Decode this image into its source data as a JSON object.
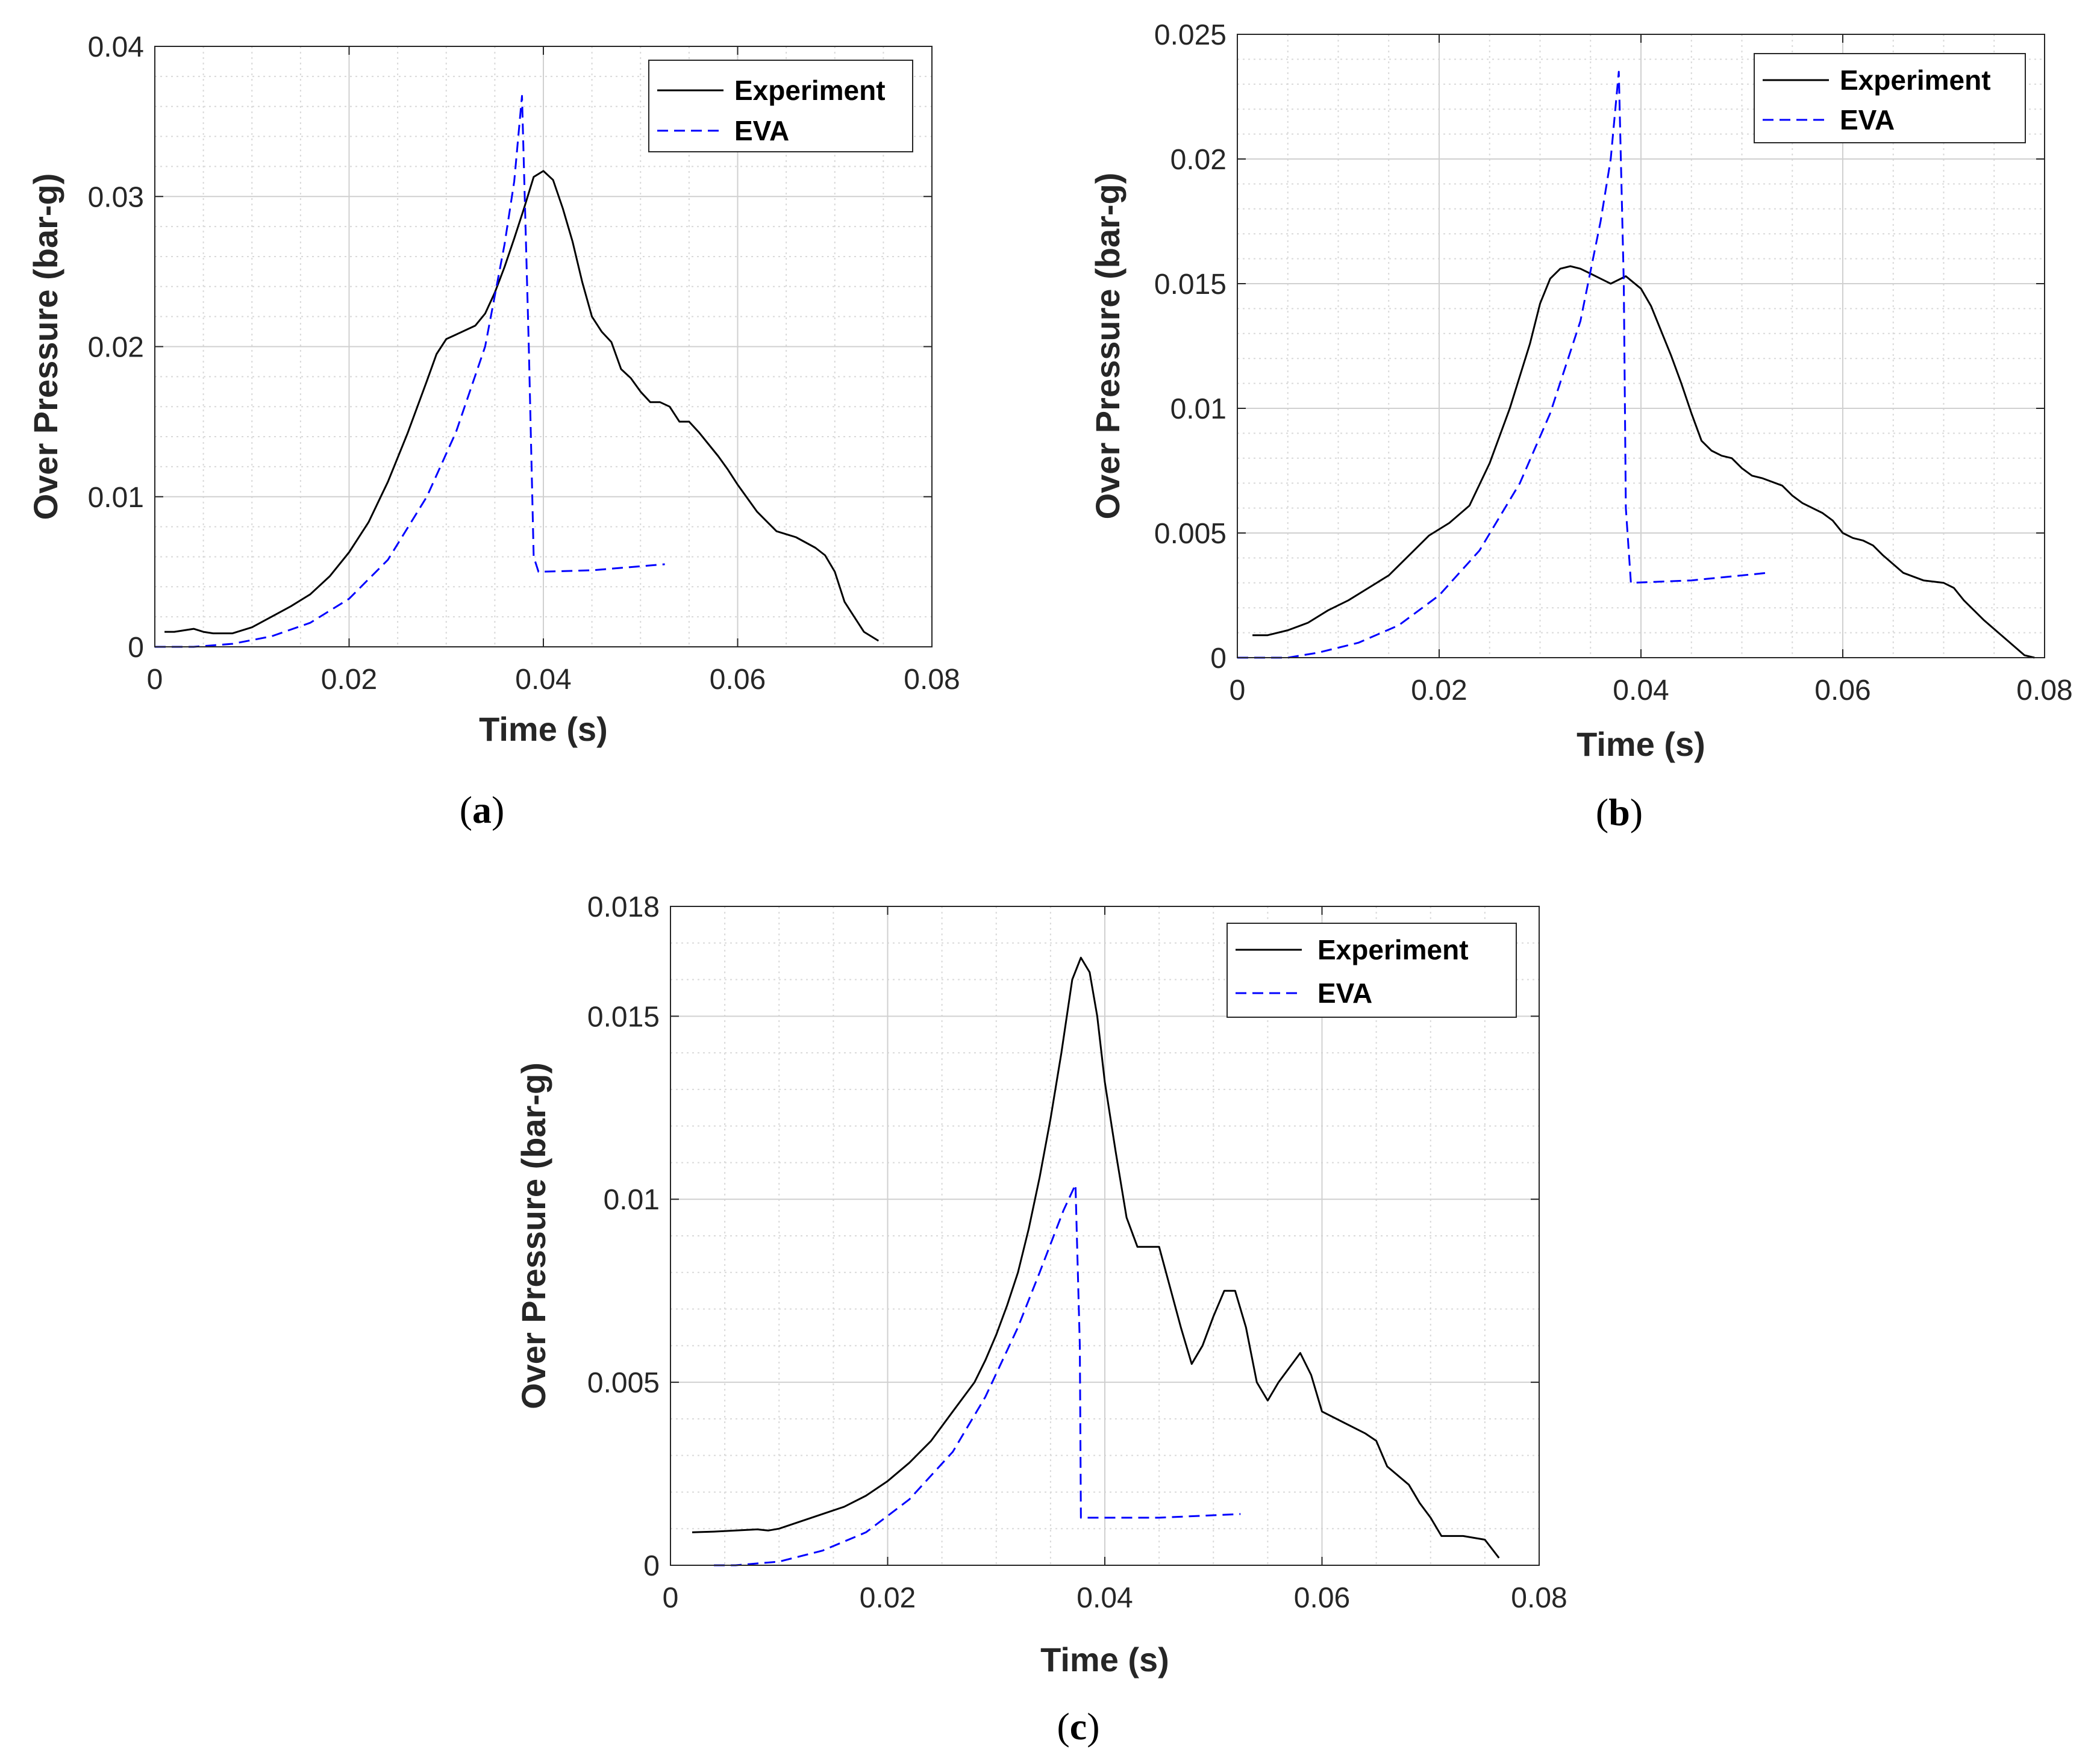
{
  "chart_data": [
    {
      "panel": "a",
      "panel_label": "(a)",
      "panel_letter": "a",
      "type": "line",
      "xlabel": "Time (s)",
      "ylabel": "Over Pressure (bar-g)",
      "xlim": [
        0,
        0.08
      ],
      "ylim": [
        0,
        0.04
      ],
      "xticks": [
        0,
        0.02,
        0.04,
        0.06,
        0.08
      ],
      "xtick_labels": [
        "0",
        "0.02",
        "0.04",
        "0.06",
        "0.08"
      ],
      "yticks": [
        0,
        0.01,
        0.02,
        0.03,
        0.04
      ],
      "ytick_labels": [
        "0",
        "0.01",
        "0.02",
        "0.03",
        "0.04"
      ],
      "grid": true,
      "minor_grid": true,
      "legend_position": "top-right",
      "series": [
        {
          "name": "Experiment",
          "color": "#000000",
          "style": "solid",
          "points": [
            [
              0.001,
              0.001
            ],
            [
              0.002,
              0.001
            ],
            [
              0.004,
              0.0012
            ],
            [
              0.005,
              0.001
            ],
            [
              0.006,
              0.0009
            ],
            [
              0.008,
              0.0009
            ],
            [
              0.01,
              0.0013
            ],
            [
              0.012,
              0.002
            ],
            [
              0.014,
              0.0027
            ],
            [
              0.016,
              0.0035
            ],
            [
              0.018,
              0.0047
            ],
            [
              0.02,
              0.0063
            ],
            [
              0.022,
              0.0083
            ],
            [
              0.024,
              0.011
            ],
            [
              0.026,
              0.0142
            ],
            [
              0.028,
              0.0177
            ],
            [
              0.029,
              0.0195
            ],
            [
              0.03,
              0.0205
            ],
            [
              0.031,
              0.0208
            ],
            [
              0.032,
              0.0211
            ],
            [
              0.033,
              0.0214
            ],
            [
              0.034,
              0.0222
            ],
            [
              0.035,
              0.0236
            ],
            [
              0.036,
              0.0253
            ],
            [
              0.037,
              0.0272
            ],
            [
              0.038,
              0.0292
            ],
            [
              0.039,
              0.0313
            ],
            [
              0.04,
              0.0317
            ],
            [
              0.041,
              0.0311
            ],
            [
              0.042,
              0.0292
            ],
            [
              0.043,
              0.027
            ],
            [
              0.044,
              0.0243
            ],
            [
              0.045,
              0.022
            ],
            [
              0.046,
              0.021
            ],
            [
              0.047,
              0.0203
            ],
            [
              0.048,
              0.0185
            ],
            [
              0.049,
              0.0179
            ],
            [
              0.05,
              0.017
            ],
            [
              0.051,
              0.0163
            ],
            [
              0.052,
              0.0163
            ],
            [
              0.053,
              0.016
            ],
            [
              0.054,
              0.015
            ],
            [
              0.055,
              0.015
            ],
            [
              0.056,
              0.0143
            ],
            [
              0.057,
              0.0135
            ],
            [
              0.058,
              0.0127
            ],
            [
              0.059,
              0.0118
            ],
            [
              0.06,
              0.0108
            ],
            [
              0.062,
              0.009
            ],
            [
              0.064,
              0.0077
            ],
            [
              0.066,
              0.0073
            ],
            [
              0.068,
              0.0066
            ],
            [
              0.069,
              0.0061
            ],
            [
              0.07,
              0.005
            ],
            [
              0.071,
              0.003
            ],
            [
              0.072,
              0.002
            ],
            [
              0.073,
              0.001
            ],
            [
              0.0745,
              0.0004
            ]
          ]
        },
        {
          "name": "EVA",
          "color": "#0000ff",
          "style": "dashed",
          "points": [
            [
              0.0,
              0.0
            ],
            [
              0.004,
              0.0
            ],
            [
              0.008,
              0.0002
            ],
            [
              0.012,
              0.0007
            ],
            [
              0.016,
              0.0016
            ],
            [
              0.02,
              0.0032
            ],
            [
              0.024,
              0.0058
            ],
            [
              0.028,
              0.01
            ],
            [
              0.031,
              0.0143
            ],
            [
              0.034,
              0.02
            ],
            [
              0.036,
              0.0268
            ],
            [
              0.037,
              0.031
            ],
            [
              0.0378,
              0.0367
            ],
            [
              0.0385,
              0.02
            ],
            [
              0.039,
              0.006
            ],
            [
              0.0395,
              0.005
            ],
            [
              0.045,
              0.0051
            ],
            [
              0.0525,
              0.0055
            ]
          ]
        }
      ]
    },
    {
      "panel": "b",
      "panel_label": "(b)",
      "panel_letter": "b",
      "type": "line",
      "xlabel": "Time (s)",
      "ylabel": "Over Pressure (bar-g)",
      "xlim": [
        0,
        0.08
      ],
      "ylim": [
        0,
        0.025
      ],
      "xticks": [
        0,
        0.02,
        0.04,
        0.06,
        0.08
      ],
      "xtick_labels": [
        "0",
        "0.02",
        "0.04",
        "0.06",
        "0.08"
      ],
      "yticks": [
        0,
        0.005,
        0.01,
        0.015,
        0.02,
        0.025
      ],
      "ytick_labels": [
        "0",
        "0.005",
        "0.01",
        "0.015",
        "0.02",
        "0.025"
      ],
      "grid": true,
      "minor_grid": true,
      "legend_position": "top-right",
      "series": [
        {
          "name": "Experiment",
          "color": "#000000",
          "style": "solid",
          "points": [
            [
              0.0015,
              0.0009
            ],
            [
              0.003,
              0.0009
            ],
            [
              0.005,
              0.0011
            ],
            [
              0.007,
              0.0014
            ],
            [
              0.009,
              0.0019
            ],
            [
              0.011,
              0.0023
            ],
            [
              0.013,
              0.0028
            ],
            [
              0.015,
              0.0033
            ],
            [
              0.017,
              0.0041
            ],
            [
              0.019,
              0.0049
            ],
            [
              0.021,
              0.0054
            ],
            [
              0.023,
              0.0061
            ],
            [
              0.025,
              0.0078
            ],
            [
              0.027,
              0.01
            ],
            [
              0.029,
              0.0126
            ],
            [
              0.03,
              0.0142
            ],
            [
              0.031,
              0.0152
            ],
            [
              0.032,
              0.0156
            ],
            [
              0.033,
              0.0157
            ],
            [
              0.034,
              0.0156
            ],
            [
              0.035,
              0.0154
            ],
            [
              0.036,
              0.0152
            ],
            [
              0.037,
              0.015
            ],
            [
              0.0385,
              0.0153
            ],
            [
              0.04,
              0.0148
            ],
            [
              0.041,
              0.0141
            ],
            [
              0.043,
              0.0121
            ],
            [
              0.044,
              0.011
            ],
            [
              0.045,
              0.0098
            ],
            [
              0.046,
              0.0087
            ],
            [
              0.047,
              0.0083
            ],
            [
              0.048,
              0.0081
            ],
            [
              0.049,
              0.008
            ],
            [
              0.05,
              0.0076
            ],
            [
              0.051,
              0.0073
            ],
            [
              0.052,
              0.0072
            ],
            [
              0.054,
              0.0069
            ],
            [
              0.055,
              0.0065
            ],
            [
              0.056,
              0.0062
            ],
            [
              0.058,
              0.0058
            ],
            [
              0.059,
              0.0055
            ],
            [
              0.06,
              0.005
            ],
            [
              0.061,
              0.0048
            ],
            [
              0.062,
              0.0047
            ],
            [
              0.063,
              0.0045
            ],
            [
              0.064,
              0.0041
            ],
            [
              0.066,
              0.0034
            ],
            [
              0.068,
              0.0031
            ],
            [
              0.07,
              0.003
            ],
            [
              0.071,
              0.0028
            ],
            [
              0.072,
              0.0023
            ],
            [
              0.074,
              0.0015
            ],
            [
              0.076,
              0.0008
            ],
            [
              0.078,
              0.0001
            ],
            [
              0.079,
              0.0
            ]
          ]
        },
        {
          "name": "EVA",
          "color": "#0000ff",
          "style": "dashed",
          "points": [
            [
              0.0,
              0.0
            ],
            [
              0.005,
              0.0
            ],
            [
              0.008,
              0.0002
            ],
            [
              0.012,
              0.0006
            ],
            [
              0.016,
              0.0013
            ],
            [
              0.02,
              0.0025
            ],
            [
              0.024,
              0.0043
            ],
            [
              0.028,
              0.007
            ],
            [
              0.031,
              0.0098
            ],
            [
              0.034,
              0.0135
            ],
            [
              0.036,
              0.0175
            ],
            [
              0.037,
              0.02
            ],
            [
              0.0378,
              0.0235
            ],
            [
              0.0383,
              0.015
            ],
            [
              0.0385,
              0.006
            ],
            [
              0.039,
              0.003
            ],
            [
              0.045,
              0.0031
            ],
            [
              0.0525,
              0.0034
            ]
          ]
        }
      ]
    },
    {
      "panel": "c",
      "panel_label": "(c)",
      "panel_letter": "c",
      "type": "line",
      "xlabel": "Time (s)",
      "ylabel": "Over Pressure (bar-g)",
      "xlim": [
        0,
        0.08
      ],
      "ylim": [
        0,
        0.018
      ],
      "xticks": [
        0,
        0.02,
        0.04,
        0.06,
        0.08
      ],
      "xtick_labels": [
        "0",
        "0.02",
        "0.04",
        "0.06",
        "0.08"
      ],
      "yticks": [
        0,
        0.005,
        0.01,
        0.015,
        0.018
      ],
      "ytick_labels": [
        "0",
        "0.005",
        "0.01",
        "0.015",
        "0.018"
      ],
      "grid": true,
      "minor_grid": true,
      "legend_position": "top-right",
      "series": [
        {
          "name": "Experiment",
          "color": "#000000",
          "style": "solid",
          "points": [
            [
              0.002,
              0.0009
            ],
            [
              0.004,
              0.00092
            ],
            [
              0.006,
              0.00095
            ],
            [
              0.008,
              0.00098
            ],
            [
              0.009,
              0.00095
            ],
            [
              0.01,
              0.001
            ],
            [
              0.012,
              0.0012
            ],
            [
              0.014,
              0.0014
            ],
            [
              0.016,
              0.0016
            ],
            [
              0.018,
              0.0019
            ],
            [
              0.02,
              0.0023
            ],
            [
              0.022,
              0.0028
            ],
            [
              0.024,
              0.0034
            ],
            [
              0.026,
              0.0042
            ],
            [
              0.028,
              0.005
            ],
            [
              0.029,
              0.0056
            ],
            [
              0.03,
              0.0063
            ],
            [
              0.031,
              0.0071
            ],
            [
              0.032,
              0.008
            ],
            [
              0.033,
              0.0092
            ],
            [
              0.034,
              0.0106
            ],
            [
              0.035,
              0.0122
            ],
            [
              0.036,
              0.014
            ],
            [
              0.037,
              0.016
            ],
            [
              0.0378,
              0.0166
            ],
            [
              0.0386,
              0.0162
            ],
            [
              0.0393,
              0.015
            ],
            [
              0.04,
              0.0132
            ],
            [
              0.041,
              0.0113
            ],
            [
              0.042,
              0.0095
            ],
            [
              0.043,
              0.0087
            ],
            [
              0.045,
              0.0087
            ],
            [
              0.046,
              0.0076
            ],
            [
              0.047,
              0.0065
            ],
            [
              0.048,
              0.0055
            ],
            [
              0.049,
              0.006
            ],
            [
              0.05,
              0.0068
            ],
            [
              0.051,
              0.0075
            ],
            [
              0.052,
              0.0075
            ],
            [
              0.053,
              0.0065
            ],
            [
              0.054,
              0.005
            ],
            [
              0.055,
              0.0045
            ],
            [
              0.056,
              0.005
            ],
            [
              0.058,
              0.0058
            ],
            [
              0.059,
              0.0052
            ],
            [
              0.06,
              0.0042
            ],
            [
              0.062,
              0.0039
            ],
            [
              0.064,
              0.0036
            ],
            [
              0.065,
              0.0034
            ],
            [
              0.066,
              0.0027
            ],
            [
              0.068,
              0.0022
            ],
            [
              0.069,
              0.0017
            ],
            [
              0.07,
              0.0013
            ],
            [
              0.071,
              0.0008
            ],
            [
              0.073,
              0.0008
            ],
            [
              0.075,
              0.0007
            ],
            [
              0.0763,
              0.0002
            ]
          ]
        },
        {
          "name": "EVA",
          "color": "#0000ff",
          "style": "dashed",
          "points": [
            [
              0.004,
              0.0
            ],
            [
              0.006,
              0.0
            ],
            [
              0.01,
              0.0001
            ],
            [
              0.014,
              0.0004
            ],
            [
              0.018,
              0.0009
            ],
            [
              0.022,
              0.0018
            ],
            [
              0.026,
              0.0031
            ],
            [
              0.029,
              0.0046
            ],
            [
              0.032,
              0.0065
            ],
            [
              0.034,
              0.008
            ],
            [
              0.0362,
              0.0097
            ],
            [
              0.0373,
              0.0104
            ],
            [
              0.0377,
              0.006
            ],
            [
              0.0378,
              0.0013
            ],
            [
              0.045,
              0.0013
            ],
            [
              0.0525,
              0.0014
            ]
          ]
        }
      ]
    }
  ]
}
